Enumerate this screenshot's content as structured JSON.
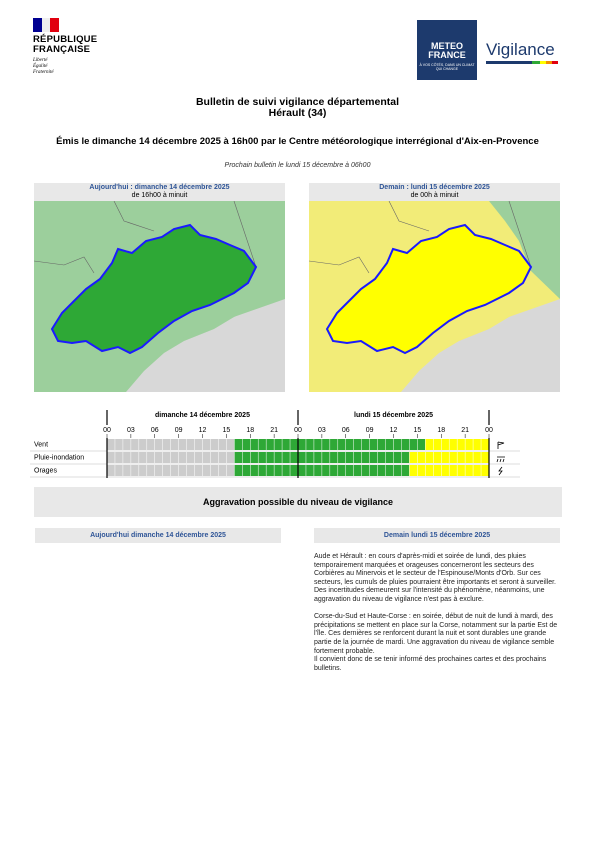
{
  "header": {
    "republic": "RÉPUBLIQUE\nFRANÇAISE",
    "motto": [
      "Liberté",
      "Égalité",
      "Fraternité"
    ],
    "brand": "METEO\nFRANCE",
    "brand_tagline": "À VOS CÔTÉS, DANS UN CLIMAT QUI CHANGE",
    "product": "Vigilance"
  },
  "title": "Bulletin de suivi vigilance départemental",
  "department": "Hérault (34)",
  "issued": "Émis le dimanche 14 décembre 2025 à 16h00 par le Centre météorologique interrégional d'Aix-en-Provence",
  "next_bulletin": "Prochain bulletin le lundi 15 décembre à 06h00",
  "maps": [
    {
      "heading": "Aujourd'hui : dimanche 14 décembre 2025",
      "period": "de 16h00 à minuit",
      "color": "#2ea836"
    },
    {
      "heading": "Demain : lundi 15 décembre 2025",
      "period": "de 00h à minuit",
      "color": "#ffff00"
    }
  ],
  "timeline": {
    "days": [
      "dimanche 14 décembre 2025",
      "lundi 15 décembre 2025"
    ],
    "hours": [
      "00",
      "03",
      "06",
      "09",
      "12",
      "15",
      "18",
      "21",
      "00",
      "03",
      "06",
      "09",
      "12",
      "15",
      "18",
      "21",
      "00"
    ],
    "span": 48,
    "rows": [
      {
        "label": "Vent",
        "segments": [
          {
            "start": 0,
            "end": 16,
            "color": "#cccccc"
          },
          {
            "start": 16,
            "end": 40,
            "color": "#2ea836"
          },
          {
            "start": 40,
            "end": 48,
            "color": "#ffff00"
          }
        ]
      },
      {
        "label": "Pluie-inondation",
        "segments": [
          {
            "start": 0,
            "end": 16,
            "color": "#cccccc"
          },
          {
            "start": 16,
            "end": 38,
            "color": "#2ea836"
          },
          {
            "start": 38,
            "end": 48,
            "color": "#ffff00"
          }
        ]
      },
      {
        "label": "Orages",
        "segments": [
          {
            "start": 0,
            "end": 16,
            "color": "#cccccc"
          },
          {
            "start": 16,
            "end": 38,
            "color": "#2ea836"
          },
          {
            "start": 38,
            "end": 48,
            "color": "#ffff00"
          }
        ]
      }
    ]
  },
  "aggravation": "Aggravation possible du niveau de vigilance",
  "today_heading": "Aujourd'hui dimanche 14 décembre 2025",
  "tomorrow_heading": "Demain lundi 15 décembre 2025",
  "tomorrow_text": [
    "Aude et Hérault : en cours d'après-midi et soirée de lundi, des pluies temporairement marquées et orageuses concerneront les secteurs des Corbières au Minervois et le secteur de l'Espinouse/Monts d'Orb. Sur ces secteurs, les cumuls de pluies pourraient être importants et seront à surveiller. Des incertitudes demeurent sur l'intensité du phénomène, néanmoins, une aggravation du niveau de vigilance n'est pas à exclure.",
    "Corse-du-Sud et Haute-Corse : en soirée, début de nuit de lundi à mardi, des précipitations se mettent en place sur la Corse, notamment sur la partie Est de l'île. Ces dernières se renforcent durant la nuit et sont durables une grande partie de la journée de mardi. Une aggravation du niveau de vigilance semble fortement probable.",
    "Il convient donc de se tenir informé des prochaines cartes et des prochains bulletins."
  ]
}
